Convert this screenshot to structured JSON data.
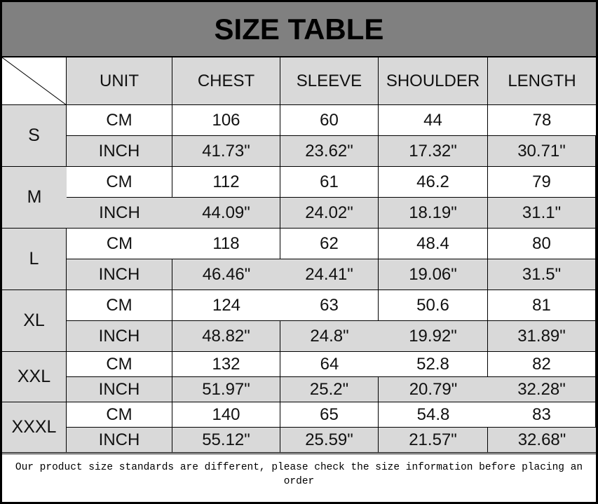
{
  "title": "SIZE TABLE",
  "headers": [
    "UNIT",
    "CHEST",
    "SLEEVE",
    "SHOULDER",
    "LENGTH"
  ],
  "sizes": [
    {
      "size": "S",
      "rows": [
        [
          "CM",
          "106",
          "60",
          "44",
          "78"
        ],
        [
          "INCH",
          "41.73\"",
          "23.62\"",
          "17.32\"",
          "30.71\""
        ]
      ]
    },
    {
      "size": "M",
      "rows": [
        [
          "CM",
          "112",
          "61",
          "46.2",
          "79"
        ],
        [
          "INCH",
          "44.09\"",
          "24.02\"",
          "18.19\"",
          "31.1\""
        ]
      ]
    },
    {
      "size": "L",
      "rows": [
        [
          "CM",
          "118",
          "62",
          "48.4",
          "80"
        ],
        [
          "INCH",
          "46.46\"",
          "24.41\"",
          "19.06\"",
          "31.5\""
        ]
      ]
    },
    {
      "size": "XL",
      "rows": [
        [
          "CM",
          "124",
          "63",
          "50.6",
          "81"
        ],
        [
          "INCH",
          "48.82\"",
          "24.8\"",
          "19.92\"",
          "31.89\""
        ]
      ]
    },
    {
      "size": "XXL",
      "rows": [
        [
          "CM",
          "132",
          "64",
          "52.8",
          "82"
        ],
        [
          "INCH",
          "51.97\"",
          "25.2\"",
          "20.79\"",
          "32.28\""
        ]
      ]
    },
    {
      "size": "XXXL",
      "rows": [
        [
          "CM",
          "140",
          "65",
          "54.8",
          "83"
        ],
        [
          "INCH",
          "55.12\"",
          "25.59\"",
          "21.57\"",
          "32.68\""
        ]
      ]
    }
  ],
  "note": "Our product size standards are different, please check the size information before placing an order",
  "colors": {
    "title_bg": "#808080",
    "header_bg": "#d9d9d9",
    "alt_row_bg": "#d9d9d9"
  }
}
